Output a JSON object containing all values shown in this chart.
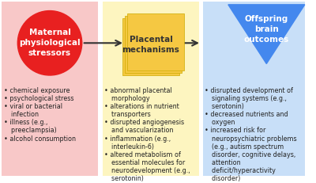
{
  "background_color": "#ffffff",
  "panel_colors": {
    "left": "#f8c8c8",
    "middle": "#fdf5c0",
    "right": "#c8dff8"
  },
  "shape_colors": {
    "circle": "#e82020",
    "square": "#f5c842",
    "triangle": "#4488ee"
  },
  "shape_labels": {
    "circle": "Maternal\nphysiological\nstressors",
    "square": "Placental\nmechanisms",
    "triangle": "Offspring\nbrain\noutcomes"
  },
  "left_bullets": [
    "chemical exposure",
    "psychological stress",
    "viral or bacterial\n  infection",
    "illness (e.g.,\n  preeclampsia)",
    "alcohol consumption"
  ],
  "middle_bullets": [
    "abnormal placental\n  morphology",
    "alterations in nutrient\n  transporters",
    "disrupted angiogenesis\n  and vascularization",
    "inflammation (e.g.,\n  interleukin-6)",
    "altered metabolism of\n  essential molecules for\n  neurodevelopment (e.g.,\n  serotonin)"
  ],
  "right_bullets": [
    "disrupted development of\n  signaling systems (e.g.,\n  serotonin)",
    "decreased nutrients and\n  oxygen",
    "increased risk for\n  neuropsychiatric problems\n  (e.g., autism spectrum\n  disorder, cognitive delays,\n  attention\n  deficit/hyperactivity\n  disorder)"
  ],
  "fontsize_shape_label": 7.5,
  "fontsize_bullet": 5.8,
  "arrow_color": "#333333"
}
